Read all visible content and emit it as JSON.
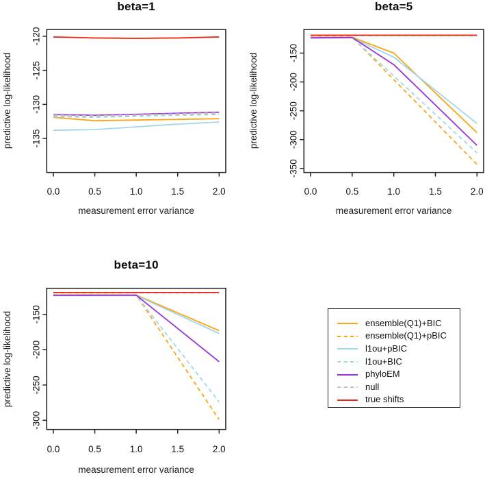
{
  "page": {
    "background": "#ffffff"
  },
  "colors": {
    "orange": "#FCA githubA",
    "accent_orange": "#FCA511",
    "accent_lightblue": "#9FD7EA",
    "accent_purple": "#9733D6",
    "accent_gray": "#C3C3C3",
    "accent_red": "#EC2518",
    "axis": "#262626",
    "text": "#111111"
  },
  "legend": {
    "items": [
      {
        "label": "ensemble(Q1)+BIC",
        "color": "accent_orange",
        "dash": false
      },
      {
        "label": "ensemble(Q1)+pBIC",
        "color": "accent_orange",
        "dash": true
      },
      {
        "label": "l1ou+pBIC",
        "color": "accent_lightblue",
        "dash": false
      },
      {
        "label": "l1ou+BIC",
        "color": "accent_lightblue",
        "dash": true
      },
      {
        "label": "phyloEM",
        "color": "accent_purple",
        "dash": false
      },
      {
        "label": "null",
        "color": "accent_gray",
        "dash": true
      },
      {
        "label": "true shifts",
        "color": "accent_red",
        "dash": false
      }
    ]
  },
  "chart_data": {
    "type": "line",
    "xlabel": "measurement error variance",
    "ylabel": "predictive log-likelihood",
    "x": [
      0.0,
      0.5,
      1.0,
      1.5,
      2.0
    ],
    "x_tick_labels": [
      "0.0",
      "0.5",
      "1.0",
      "1.5",
      "2.0"
    ],
    "legend_position": "bottom-right (separate box)",
    "grid": false,
    "panels": [
      {
        "title": "beta=1",
        "xlim": [
          -0.08,
          2.08
        ],
        "ylim": [
          -140,
          -119
        ],
        "y_ticks": [
          -120,
          -125,
          -130,
          -135
        ],
        "series": [
          {
            "name": "ensemble(Q1)+BIC",
            "color": "accent_orange",
            "dash": false,
            "values": [
              -131.9,
              -132.4,
              -132.3,
              -132.2,
              -132.1
            ]
          },
          {
            "name": "ensemble(Q1)+pBIC",
            "color": "accent_orange",
            "dash": true,
            "values": [
              -131.7,
              -131.9,
              -131.7,
              -131.5,
              -131.3
            ]
          },
          {
            "name": "l1ou+pBIC",
            "color": "accent_lightblue",
            "dash": false,
            "values": [
              -133.8,
              -133.7,
              -133.3,
              -132.9,
              -132.6
            ]
          },
          {
            "name": "l1ou+BIC",
            "color": "accent_lightblue",
            "dash": true,
            "values": [
              -131.8,
              -131.9,
              -131.75,
              -131.6,
              -131.5
            ]
          },
          {
            "name": "phyloEM",
            "color": "accent_purple",
            "dash": false,
            "values": [
              -131.5,
              -131.6,
              -131.45,
              -131.3,
              -131.15
            ]
          },
          {
            "name": "null",
            "color": "accent_gray",
            "dash": true,
            "values": [
              -131.6,
              -131.7,
              -131.55,
              -131.4,
              -131.25
            ]
          },
          {
            "name": "true shifts",
            "color": "accent_red",
            "dash": false,
            "values": [
              -120.1,
              -120.25,
              -120.3,
              -120.25,
              -120.1
            ]
          }
        ]
      },
      {
        "title": "beta=5",
        "xlim": [
          -0.08,
          2.08
        ],
        "ylim": [
          -357,
          -109
        ],
        "y_ticks": [
          -150,
          -200,
          -250,
          -300,
          -350
        ],
        "series": [
          {
            "name": "ensemble(Q1)+BIC",
            "color": "accent_orange",
            "dash": false,
            "values": [
              -123,
              -122.5,
              -150,
              -219,
              -288
            ]
          },
          {
            "name": "ensemble(Q1)+pBIC",
            "color": "accent_orange",
            "dash": true,
            "values": [
              -122.5,
              -122.3,
              -195.9,
              -269.4,
              -343
            ]
          },
          {
            "name": "l1ou+pBIC",
            "color": "accent_lightblue",
            "dash": false,
            "values": [
              -124,
              -123.5,
              -157,
              -214.5,
              -272
            ]
          },
          {
            "name": "l1ou+BIC",
            "color": "accent_lightblue",
            "dash": true,
            "values": [
              -123.5,
              -123,
              -189.7,
              -256.3,
              -323
            ]
          },
          {
            "name": "phyloEM",
            "color": "accent_purple",
            "dash": false,
            "values": [
              -123.5,
              -123,
              -170,
              -240,
              -310
            ]
          },
          {
            "name": "null",
            "color": "accent_gray",
            "dash": true,
            "values": [
              -119.6,
              -119.6,
              -119.6,
              -119.6,
              -119.6
            ]
          },
          {
            "name": "true shifts",
            "color": "accent_red",
            "dash": false,
            "values": [
              -119,
              -119,
              -119,
              -119,
              -119
            ]
          }
        ]
      },
      {
        "title": "beta=10",
        "xlim": [
          -0.08,
          2.08
        ],
        "ylim": [
          -313,
          -113
        ],
        "y_ticks": [
          -150,
          -200,
          -250,
          -300
        ],
        "series": [
          {
            "name": "ensemble(Q1)+BIC",
            "color": "accent_orange",
            "dash": false,
            "values": [
              -122.5,
              -122.3,
              -122.5,
              -147.8,
              -173
            ]
          },
          {
            "name": "ensemble(Q1)+pBIC",
            "color": "accent_orange",
            "dash": true,
            "values": [
              -122.3,
              -122.2,
              -122.4,
              -210.7,
              -299
            ]
          },
          {
            "name": "l1ou+pBIC",
            "color": "accent_lightblue",
            "dash": false,
            "values": [
              -123.5,
              -123.4,
              -123.2,
              -150.1,
              -177
            ]
          },
          {
            "name": "l1ou+BIC",
            "color": "accent_lightblue",
            "dash": true,
            "values": [
              -123,
              -122.8,
              -123,
              -198.5,
              -274
            ]
          },
          {
            "name": "phyloEM",
            "color": "accent_purple",
            "dash": false,
            "values": [
              -123,
              -122.9,
              -122.8,
              -169.9,
              -217
            ]
          },
          {
            "name": "null",
            "color": "accent_gray",
            "dash": true,
            "values": [
              -119.5,
              -119.5,
              -119.5,
              -119.5,
              -119.5
            ]
          },
          {
            "name": "true shifts",
            "color": "accent_red",
            "dash": false,
            "values": [
              -119,
              -119,
              -119,
              -119,
              -119
            ]
          }
        ]
      }
    ]
  }
}
